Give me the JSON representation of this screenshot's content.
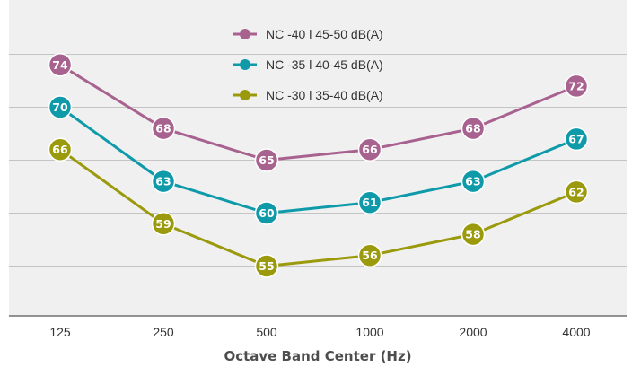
{
  "chart_data": {
    "type": "line",
    "title": "",
    "xlabel": "Octave Band Center (Hz)",
    "ylabel": "",
    "categories": [
      "125",
      "250",
      "500",
      "1000",
      "2000",
      "4000"
    ],
    "ylim": [
      50,
      80
    ],
    "grid": true,
    "legend_position": "top-center",
    "series": [
      {
        "name": "NC -40 l 45-50 dB(A)",
        "color": "#a8628f",
        "values": [
          74,
          68,
          65,
          66,
          68,
          72
        ]
      },
      {
        "name": "NC -35 l 40-45 dB(A)",
        "color": "#0f9aaa",
        "values": [
          70,
          63,
          60,
          61,
          63,
          67
        ]
      },
      {
        "name": "NC -30 l 35-40 dB(A)",
        "color": "#9a9a0c",
        "values": [
          66,
          59,
          55,
          56,
          58,
          62
        ]
      }
    ]
  }
}
